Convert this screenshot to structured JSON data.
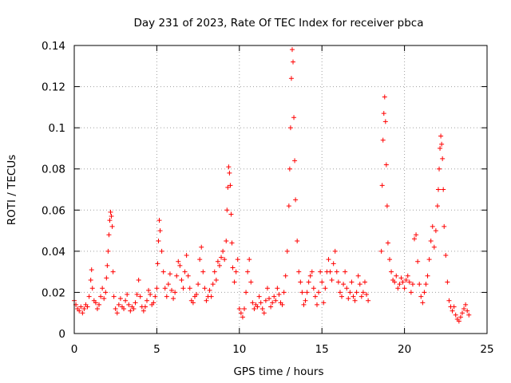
{
  "chart_data": {
    "type": "scatter",
    "title": "Day 231 of 2023, Rate Of TEC Index for receiver pbca",
    "xlabel": "GPS time / hours",
    "ylabel": "ROTI / TECUs",
    "xlim": [
      0,
      25
    ],
    "ylim": [
      0,
      0.14
    ],
    "xticks": [
      "0",
      "5",
      "10",
      "15",
      "20",
      "25"
    ],
    "yticks": [
      "0",
      "0.02",
      "0.04",
      "0.06",
      "0.08",
      "0.1",
      "0.12",
      "0.14"
    ],
    "xtick_values": [
      0,
      5,
      10,
      15,
      20,
      25
    ],
    "ytick_values": [
      0,
      0.02,
      0.04,
      0.06,
      0.08,
      0.1,
      0.12,
      0.14
    ],
    "grid": true,
    "marker": "plus",
    "color": "#ff0000",
    "series": [
      {
        "points": [
          [
            0.0,
            0.016
          ],
          [
            0.1,
            0.014
          ],
          [
            0.2,
            0.012
          ],
          [
            0.3,
            0.011
          ],
          [
            0.4,
            0.013
          ],
          [
            0.5,
            0.01
          ],
          [
            0.6,
            0.012
          ],
          [
            0.7,
            0.014
          ],
          [
            0.8,
            0.013
          ],
          [
            0.9,
            0.018
          ],
          [
            1.0,
            0.026
          ],
          [
            1.05,
            0.031
          ],
          [
            1.1,
            0.022
          ],
          [
            1.2,
            0.016
          ],
          [
            1.3,
            0.015
          ],
          [
            1.4,
            0.012
          ],
          [
            1.5,
            0.014
          ],
          [
            1.6,
            0.018
          ],
          [
            1.7,
            0.022
          ],
          [
            1.8,
            0.017
          ],
          [
            1.9,
            0.02
          ],
          [
            1.95,
            0.027
          ],
          [
            2.0,
            0.033
          ],
          [
            2.05,
            0.04
          ],
          [
            2.1,
            0.048
          ],
          [
            2.15,
            0.055
          ],
          [
            2.2,
            0.059
          ],
          [
            2.25,
            0.057
          ],
          [
            2.3,
            0.052
          ],
          [
            2.35,
            0.03
          ],
          [
            2.4,
            0.018
          ],
          [
            2.5,
            0.012
          ],
          [
            2.6,
            0.01
          ],
          [
            2.7,
            0.014
          ],
          [
            2.8,
            0.017
          ],
          [
            2.9,
            0.013
          ],
          [
            3.0,
            0.012
          ],
          [
            3.1,
            0.016
          ],
          [
            3.2,
            0.019
          ],
          [
            3.3,
            0.014
          ],
          [
            3.4,
            0.011
          ],
          [
            3.5,
            0.013
          ],
          [
            3.6,
            0.012
          ],
          [
            3.7,
            0.015
          ],
          [
            3.8,
            0.019
          ],
          [
            3.9,
            0.026
          ],
          [
            4.0,
            0.018
          ],
          [
            4.1,
            0.013
          ],
          [
            4.2,
            0.011
          ],
          [
            4.3,
            0.013
          ],
          [
            4.4,
            0.016
          ],
          [
            4.5,
            0.021
          ],
          [
            4.6,
            0.019
          ],
          [
            4.7,
            0.014
          ],
          [
            4.8,
            0.015
          ],
          [
            4.9,
            0.018
          ],
          [
            5.0,
            0.022
          ],
          [
            5.05,
            0.034
          ],
          [
            5.1,
            0.045
          ],
          [
            5.15,
            0.055
          ],
          [
            5.2,
            0.05
          ],
          [
            5.3,
            0.04
          ],
          [
            5.4,
            0.03
          ],
          [
            5.5,
            0.022
          ],
          [
            5.6,
            0.018
          ],
          [
            5.7,
            0.024
          ],
          [
            5.8,
            0.029
          ],
          [
            5.9,
            0.021
          ],
          [
            6.0,
            0.017
          ],
          [
            6.1,
            0.02
          ],
          [
            6.2,
            0.028
          ],
          [
            6.3,
            0.035
          ],
          [
            6.4,
            0.033
          ],
          [
            6.5,
            0.026
          ],
          [
            6.6,
            0.022
          ],
          [
            6.7,
            0.03
          ],
          [
            6.8,
            0.038
          ],
          [
            6.9,
            0.028
          ],
          [
            7.0,
            0.022
          ],
          [
            7.1,
            0.016
          ],
          [
            7.2,
            0.015
          ],
          [
            7.3,
            0.018
          ],
          [
            7.4,
            0.019
          ],
          [
            7.5,
            0.024
          ],
          [
            7.6,
            0.036
          ],
          [
            7.7,
            0.042
          ],
          [
            7.8,
            0.03
          ],
          [
            7.9,
            0.022
          ],
          [
            8.0,
            0.016
          ],
          [
            8.1,
            0.018
          ],
          [
            8.2,
            0.021
          ],
          [
            8.3,
            0.018
          ],
          [
            8.4,
            0.024
          ],
          [
            8.5,
            0.03
          ],
          [
            8.6,
            0.026
          ],
          [
            8.7,
            0.035
          ],
          [
            8.8,
            0.033
          ],
          [
            8.9,
            0.037
          ],
          [
            9.0,
            0.04
          ],
          [
            9.1,
            0.036
          ],
          [
            9.2,
            0.045
          ],
          [
            9.25,
            0.06
          ],
          [
            9.3,
            0.071
          ],
          [
            9.35,
            0.081
          ],
          [
            9.4,
            0.078
          ],
          [
            9.45,
            0.072
          ],
          [
            9.5,
            0.058
          ],
          [
            9.55,
            0.044
          ],
          [
            9.6,
            0.032
          ],
          [
            9.7,
            0.025
          ],
          [
            9.8,
            0.03
          ],
          [
            9.9,
            0.036
          ],
          [
            10.0,
            0.012
          ],
          [
            10.1,
            0.01
          ],
          [
            10.2,
            0.008
          ],
          [
            10.3,
            0.012
          ],
          [
            10.4,
            0.02
          ],
          [
            10.5,
            0.03
          ],
          [
            10.6,
            0.036
          ],
          [
            10.7,
            0.025
          ],
          [
            10.8,
            0.015
          ],
          [
            10.9,
            0.012
          ],
          [
            11.0,
            0.014
          ],
          [
            11.1,
            0.013
          ],
          [
            11.2,
            0.018
          ],
          [
            11.3,
            0.015
          ],
          [
            11.4,
            0.012
          ],
          [
            11.5,
            0.01
          ],
          [
            11.6,
            0.016
          ],
          [
            11.7,
            0.022
          ],
          [
            11.8,
            0.017
          ],
          [
            11.9,
            0.013
          ],
          [
            12.0,
            0.015
          ],
          [
            12.1,
            0.018
          ],
          [
            12.2,
            0.016
          ],
          [
            12.3,
            0.022
          ],
          [
            12.4,
            0.019
          ],
          [
            12.5,
            0.015
          ],
          [
            12.6,
            0.014
          ],
          [
            12.7,
            0.02
          ],
          [
            12.8,
            0.028
          ],
          [
            12.9,
            0.04
          ],
          [
            13.0,
            0.062
          ],
          [
            13.05,
            0.08
          ],
          [
            13.1,
            0.1
          ],
          [
            13.15,
            0.124
          ],
          [
            13.2,
            0.138
          ],
          [
            13.25,
            0.132
          ],
          [
            13.3,
            0.105
          ],
          [
            13.35,
            0.084
          ],
          [
            13.4,
            0.065
          ],
          [
            13.5,
            0.045
          ],
          [
            13.6,
            0.03
          ],
          [
            13.7,
            0.025
          ],
          [
            13.8,
            0.02
          ],
          [
            13.9,
            0.014
          ],
          [
            14.0,
            0.016
          ],
          [
            14.1,
            0.02
          ],
          [
            14.2,
            0.025
          ],
          [
            14.3,
            0.028
          ],
          [
            14.4,
            0.03
          ],
          [
            14.5,
            0.022
          ],
          [
            14.6,
            0.018
          ],
          [
            14.7,
            0.014
          ],
          [
            14.8,
            0.02
          ],
          [
            14.9,
            0.03
          ],
          [
            15.0,
            0.025
          ],
          [
            15.1,
            0.015
          ],
          [
            15.2,
            0.022
          ],
          [
            15.3,
            0.03
          ],
          [
            15.4,
            0.036
          ],
          [
            15.5,
            0.03
          ],
          [
            15.6,
            0.026
          ],
          [
            15.7,
            0.034
          ],
          [
            15.8,
            0.04
          ],
          [
            15.9,
            0.03
          ],
          [
            16.0,
            0.025
          ],
          [
            16.1,
            0.02
          ],
          [
            16.2,
            0.018
          ],
          [
            16.3,
            0.024
          ],
          [
            16.4,
            0.03
          ],
          [
            16.5,
            0.022
          ],
          [
            16.6,
            0.017
          ],
          [
            16.7,
            0.02
          ],
          [
            16.8,
            0.025
          ],
          [
            16.9,
            0.018
          ],
          [
            17.0,
            0.016
          ],
          [
            17.1,
            0.02
          ],
          [
            17.2,
            0.028
          ],
          [
            17.3,
            0.024
          ],
          [
            17.4,
            0.018
          ],
          [
            17.5,
            0.02
          ],
          [
            17.6,
            0.025
          ],
          [
            17.7,
            0.019
          ],
          [
            17.8,
            0.016
          ],
          [
            18.6,
            0.04
          ],
          [
            18.65,
            0.072
          ],
          [
            18.7,
            0.094
          ],
          [
            18.75,
            0.107
          ],
          [
            18.8,
            0.115
          ],
          [
            18.85,
            0.103
          ],
          [
            18.9,
            0.082
          ],
          [
            18.95,
            0.062
          ],
          [
            19.0,
            0.044
          ],
          [
            19.1,
            0.036
          ],
          [
            19.2,
            0.03
          ],
          [
            19.3,
            0.026
          ],
          [
            19.4,
            0.025
          ],
          [
            19.5,
            0.028
          ],
          [
            19.6,
            0.022
          ],
          [
            19.7,
            0.024
          ],
          [
            19.8,
            0.027
          ],
          [
            19.9,
            0.025
          ],
          [
            20.0,
            0.022
          ],
          [
            20.1,
            0.026
          ],
          [
            20.2,
            0.028
          ],
          [
            20.3,
            0.025
          ],
          [
            20.4,
            0.02
          ],
          [
            20.5,
            0.024
          ],
          [
            20.6,
            0.046
          ],
          [
            20.7,
            0.048
          ],
          [
            20.8,
            0.035
          ],
          [
            20.9,
            0.024
          ],
          [
            21.0,
            0.018
          ],
          [
            21.1,
            0.015
          ],
          [
            21.2,
            0.02
          ],
          [
            21.3,
            0.024
          ],
          [
            21.4,
            0.028
          ],
          [
            21.5,
            0.036
          ],
          [
            21.6,
            0.045
          ],
          [
            21.7,
            0.052
          ],
          [
            21.8,
            0.042
          ],
          [
            21.9,
            0.05
          ],
          [
            22.0,
            0.062
          ],
          [
            22.05,
            0.07
          ],
          [
            22.1,
            0.08
          ],
          [
            22.15,
            0.09
          ],
          [
            22.2,
            0.096
          ],
          [
            22.25,
            0.092
          ],
          [
            22.3,
            0.085
          ],
          [
            22.35,
            0.07
          ],
          [
            22.4,
            0.052
          ],
          [
            22.5,
            0.038
          ],
          [
            22.6,
            0.025
          ],
          [
            22.7,
            0.016
          ],
          [
            22.8,
            0.013
          ],
          [
            22.9,
            0.011
          ],
          [
            23.0,
            0.013
          ],
          [
            23.1,
            0.009
          ],
          [
            23.2,
            0.007
          ],
          [
            23.3,
            0.006
          ],
          [
            23.4,
            0.008
          ],
          [
            23.5,
            0.01
          ],
          [
            23.6,
            0.012
          ],
          [
            23.7,
            0.014
          ],
          [
            23.8,
            0.011
          ],
          [
            23.9,
            0.009
          ]
        ]
      }
    ]
  }
}
